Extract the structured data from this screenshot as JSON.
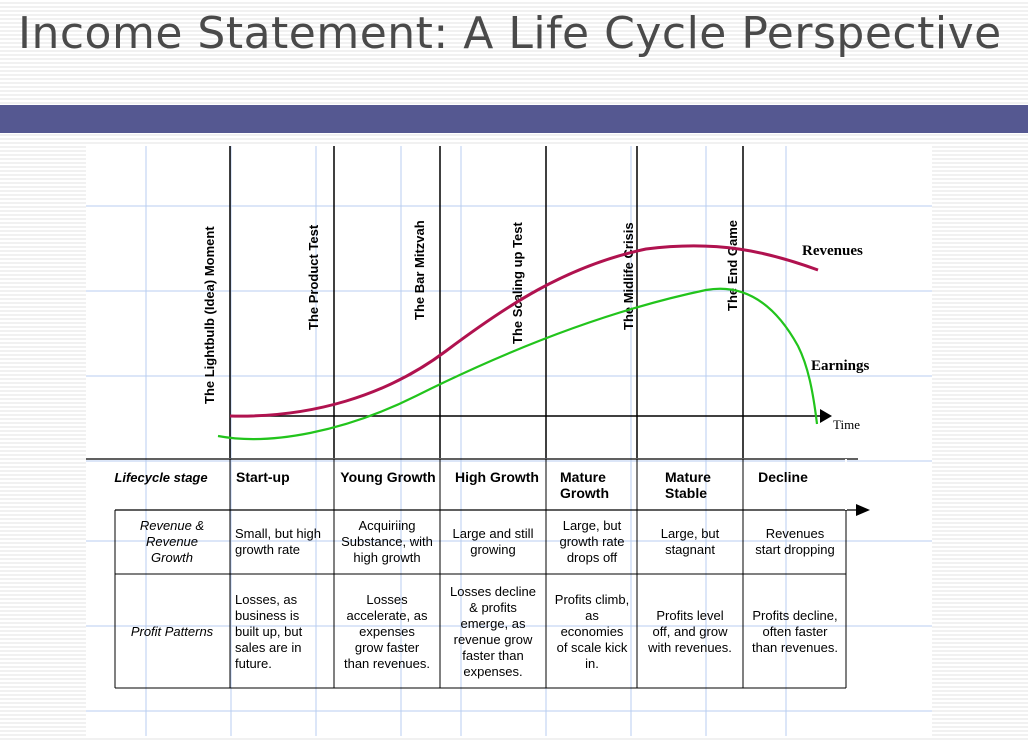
{
  "title": "Income Statement: A Life Cycle Perspective",
  "colors": {
    "title_bar": "#555891",
    "revenues": "#b0124f",
    "earnings": "#22c41c",
    "grid": "#b9cdf0"
  },
  "milestones": [
    "The Lightbulb (Idea) Moment",
    "The Product Test",
    "The Bar Mitzvah",
    "The Scaling up Test",
    "The Midlife Crisis",
    "The End Game"
  ],
  "curves": {
    "revenues_label": "Revenues",
    "earnings_label": "Earnings",
    "axis_label": "Time"
  },
  "table": {
    "stage_header": "Lifecycle stage",
    "stages": [
      [
        "Start-up"
      ],
      [
        "Young Growth"
      ],
      [
        "High Growth"
      ],
      [
        "Mature",
        "Growth"
      ],
      [
        "Mature",
        "Stable"
      ],
      [
        "Decline"
      ]
    ],
    "rows": [
      {
        "label": [
          "Revenue &",
          "Revenue",
          "Growth"
        ],
        "cells": [
          [
            "Small, but high",
            "growth rate"
          ],
          [
            "Acquiriing",
            "Substance, with",
            "high growth"
          ],
          [
            "Large and still",
            "growing"
          ],
          [
            "Large, but",
            "growth rate",
            "drops off"
          ],
          [
            "Large, but",
            "stagnant"
          ],
          [
            "Revenues",
            "start dropping"
          ]
        ]
      },
      {
        "label": [
          "Profit Patterns"
        ],
        "cells": [
          [
            "Losses, as",
            "business is",
            "built  up, but",
            "sales are in",
            "future."
          ],
          [
            "Losses",
            "accelerate, as",
            "expenses",
            "grow faster",
            "than revenues."
          ],
          [
            "Losses decline",
            "& profits",
            "emerge, as",
            "revenue grow",
            "faster than",
            "expenses."
          ],
          [
            "Profits climb,",
            "as",
            "economies",
            "of scale kick",
            "in."
          ],
          [
            "Profits level",
            "off, and grow",
            "with revenues."
          ],
          [
            "Profits decline,",
            "often faster",
            "than revenues."
          ]
        ]
      }
    ]
  }
}
